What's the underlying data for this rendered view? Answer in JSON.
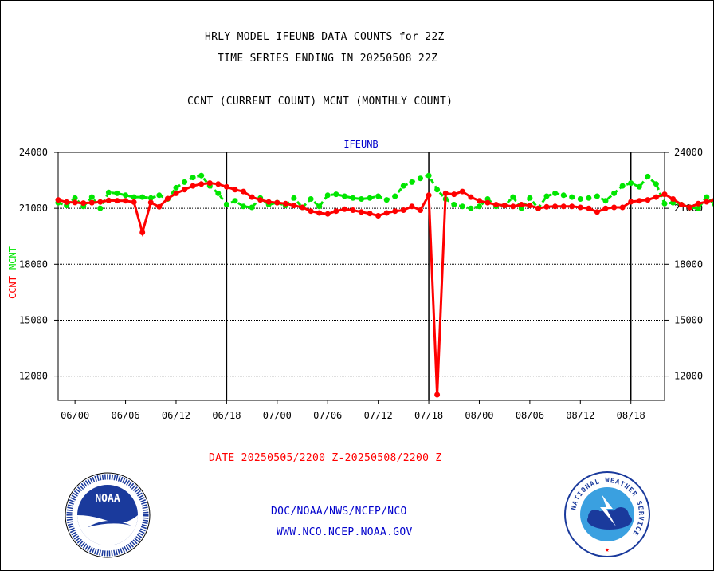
{
  "titles": {
    "line1": "HRLY MODEL IFEUNB DATA COUNTS for 22Z",
    "line2": "TIME SERIES ENDING IN 20250508 22Z",
    "line3": "CCNT (CURRENT COUNT) MCNT (MONTHLY COUNT)"
  },
  "footer": {
    "date_range": "DATE 20250505/2200 Z-20250508/2200 Z",
    "org_path": "DOC/NOAA/NWS/NCEP/NCO",
    "website": "WWW.NCO.NCEP.NOAA.GOV"
  },
  "logos": {
    "noaa_text": "NOAA",
    "nws_text": "NATIONAL WEATHER SERVICE"
  },
  "colors": {
    "ccnt": "#ff0000",
    "mcnt": "#00e600",
    "label_blue": "#0000cc",
    "grid": "#000000"
  },
  "chart_data": {
    "type": "line",
    "title": "IFEUNB",
    "ylabel_series": [
      "CCNT",
      "MCNT"
    ],
    "y_ticks": [
      12000,
      15000,
      18000,
      21000,
      24000
    ],
    "ylim": [
      10700,
      24000
    ],
    "x_ticks": [
      "06/00",
      "06/06",
      "06/12",
      "06/18",
      "07/00",
      "07/06",
      "07/12",
      "07/18",
      "08/00",
      "08/06",
      "08/12",
      "08/18"
    ],
    "x_tick_index": [
      2,
      8,
      14,
      20,
      26,
      32,
      38,
      44,
      50,
      56,
      62,
      68
    ],
    "x_range": [
      0,
      72
    ],
    "day_boundaries_index": [
      20,
      44,
      68
    ],
    "grid": true,
    "series": [
      {
        "name": "CCNT",
        "values": [
          21450,
          21330,
          21310,
          21280,
          21300,
          21340,
          21420,
          21410,
          21400,
          21330,
          19700,
          21310,
          21080,
          21520,
          21800,
          22000,
          22200,
          22300,
          22350,
          22300,
          22150,
          22000,
          21900,
          21600,
          21450,
          21340,
          21300,
          21250,
          21150,
          21050,
          20850,
          20750,
          20700,
          20850,
          20950,
          20900,
          20800,
          20720,
          20600,
          20750,
          20850,
          20900,
          21100,
          20900,
          21700,
          11000,
          21800,
          21750,
          21900,
          21600,
          21400,
          21300,
          21200,
          21150,
          21100,
          21200,
          21150,
          21000,
          21080,
          21100,
          21100,
          21100,
          21050,
          21000,
          20800,
          21000,
          21050,
          21050,
          21350,
          21400,
          21450,
          21600,
          21750,
          21500,
          21200,
          21050,
          21250,
          21350,
          21450
        ]
      },
      {
        "name": "MCNT",
        "values": [
          21300,
          21150,
          21550,
          21100,
          21600,
          21000,
          21850,
          21800,
          21700,
          21600,
          21600,
          21550,
          21700,
          21500,
          22100,
          22400,
          22650,
          22750,
          22200,
          21800,
          21200,
          21400,
          21100,
          21050,
          21550,
          21200,
          21300,
          21150,
          21550,
          21050,
          21500,
          21100,
          21700,
          21750,
          21650,
          21550,
          21500,
          21550,
          21650,
          21450,
          21650,
          22200,
          22400,
          22600,
          22750,
          22000,
          21500,
          21200,
          21100,
          21000,
          21100,
          21500,
          21100,
          21150,
          21600,
          21000,
          21550,
          21000,
          21650,
          21800,
          21700,
          21600,
          21500,
          21550,
          21650,
          21400,
          21800,
          22200,
          22350,
          22150,
          22700,
          22300,
          21250,
          21300,
          21200,
          21050,
          21000,
          21600,
          21200
        ]
      }
    ]
  }
}
